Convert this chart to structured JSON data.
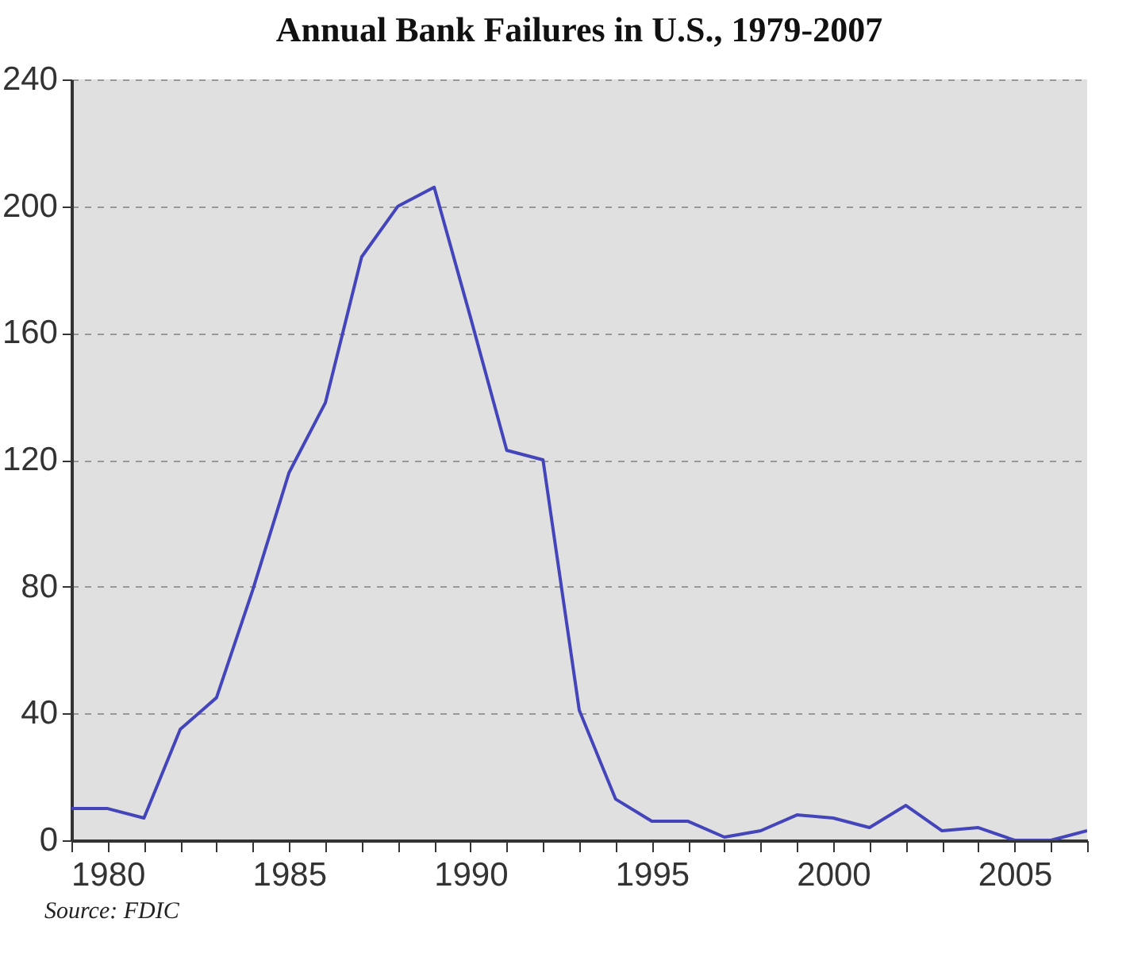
{
  "chart_data": {
    "type": "line",
    "title": "Annual Bank Failures in U.S., 1979-2007",
    "x": [
      1979,
      1980,
      1981,
      1982,
      1983,
      1984,
      1985,
      1986,
      1987,
      1988,
      1989,
      1990,
      1991,
      1992,
      1993,
      1994,
      1995,
      1996,
      1997,
      1998,
      1999,
      2000,
      2001,
      2002,
      2003,
      2004,
      2005,
      2006,
      2007
    ],
    "series": [
      {
        "color": "#4444bb",
        "values": [
          10,
          10,
          7,
          35,
          45,
          79,
          116,
          138,
          184,
          200,
          206,
          165,
          123,
          120,
          41,
          13,
          6,
          6,
          1,
          3,
          8,
          7,
          4,
          11,
          3,
          4,
          0,
          0,
          3
        ]
      }
    ],
    "xlim": [
      1979,
      2007
    ],
    "xticks": [
      {
        "value": 1979,
        "label": null
      },
      1980,
      {
        "value": 1981,
        "label": null
      },
      {
        "value": 1982,
        "label": null
      },
      {
        "value": 1983,
        "label": null
      },
      {
        "value": 1984,
        "label": null
      },
      1985,
      {
        "value": 1986,
        "label": null
      },
      {
        "value": 1987,
        "label": null
      },
      {
        "value": 1988,
        "label": null
      },
      {
        "value": 1989,
        "label": null
      },
      1990,
      {
        "value": 1991,
        "label": null
      },
      {
        "value": 1992,
        "label": null
      },
      {
        "value": 1993,
        "label": null
      },
      {
        "value": 1994,
        "label": null
      },
      1995,
      {
        "value": 1996,
        "label": null
      },
      {
        "value": 1997,
        "label": null
      },
      {
        "value": 1998,
        "label": null
      },
      {
        "value": 1999,
        "label": null
      },
      2000,
      {
        "value": 2001,
        "label": null
      },
      {
        "value": 2002,
        "label": null
      },
      {
        "value": 2003,
        "label": null
      },
      {
        "value": 2004,
        "label": null
      },
      2005,
      {
        "value": 2006,
        "label": null
      },
      {
        "value": 2007,
        "label": null
      }
    ],
    "ylim": [
      0,
      240
    ],
    "yticks": [
      0,
      40,
      80,
      120,
      160,
      200,
      240
    ],
    "grid": "y",
    "marker": "none",
    "line_style": "solid",
    "annotations": [
      "Source:  FDIC"
    ]
  }
}
